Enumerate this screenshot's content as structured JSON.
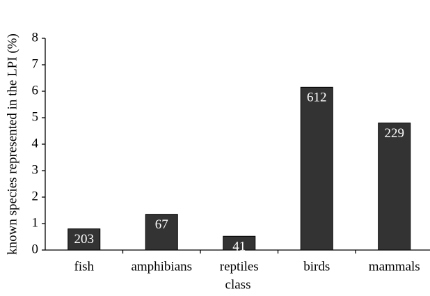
{
  "chart_data": {
    "type": "bar",
    "x_label": "class",
    "y_label": "known species represented in the LPI (%)",
    "categories": [
      "fish",
      "amphibians",
      "reptiles",
      "birds",
      "mammals"
    ],
    "values": [
      0.8,
      1.35,
      0.52,
      6.15,
      4.8
    ],
    "bar_annotations": [
      203,
      67,
      41,
      612,
      229
    ],
    "color": "#333333",
    "ylim": [
      0,
      8
    ],
    "yticks": [
      0,
      1,
      2,
      3,
      4,
      5,
      6,
      7,
      8
    ],
    "grid": false
  }
}
